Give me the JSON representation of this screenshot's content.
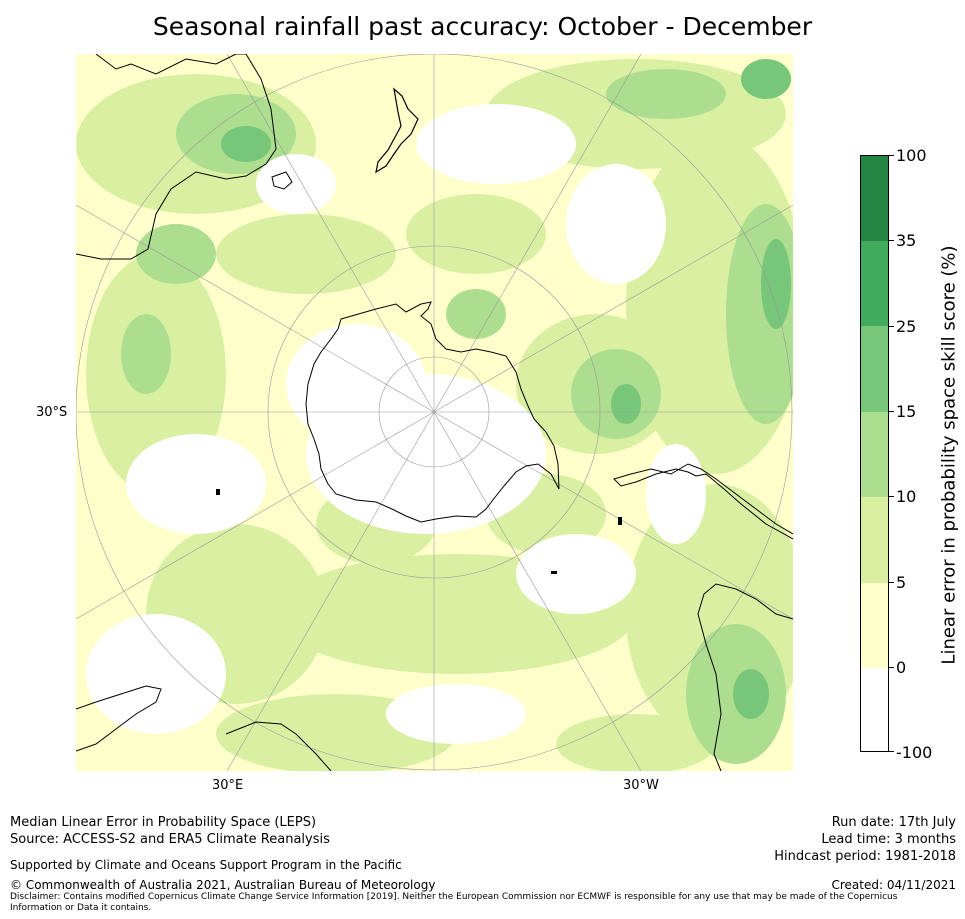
{
  "title": "Seasonal rainfall past accuracy: October - December",
  "map": {
    "projection": "south polar stereographic",
    "graticule_labels": {
      "lat": "30°S",
      "lon_left": "30°E",
      "lon_right": "30°W"
    },
    "land_outline_color": "#000000",
    "graticule_color": "#999999"
  },
  "colorbar": {
    "label": "Linear error in probability space skill score (%)",
    "ticks": [
      "100",
      "35",
      "25",
      "15",
      "10",
      "5",
      "0",
      "-100"
    ],
    "bins": [
      {
        "range": "35 to 100",
        "color": "#238443"
      },
      {
        "range": "25 to 35",
        "color": "#41ab5d"
      },
      {
        "range": "15 to 25",
        "color": "#78c679"
      },
      {
        "range": "10 to 15",
        "color": "#addd8e"
      },
      {
        "range": "5 to 10",
        "color": "#d9f0a3"
      },
      {
        "range": "0 to 5",
        "color": "#ffffcc"
      },
      {
        "range": "-100 to 0",
        "color": "#ffffff"
      }
    ]
  },
  "footer": {
    "left_line1": "Median Linear Error in Probability Space (LEPS)",
    "left_line2": "Source: ACCESS-S2 and ERA5 Climate Reanalysis",
    "support": "Supported by Climate and Oceans Support Program in the Pacific",
    "copyright": "© Commonwealth of Australia 2021, Australian Bureau of Meteorology",
    "disclaimer_line1": "Disclaimer: Contains modified Copernicus Climate Change Service Information [2019]. Neither the European Commission nor ECMWF is responsible for any use that may be made of the Copernicus",
    "disclaimer_line2": "Information or Data it contains.",
    "run_date": "Run date: 17th July",
    "lead_time": "Lead time: 3 months",
    "hindcast": "Hindcast period: 1981-2018",
    "created": "Created: 04/11/2021"
  }
}
